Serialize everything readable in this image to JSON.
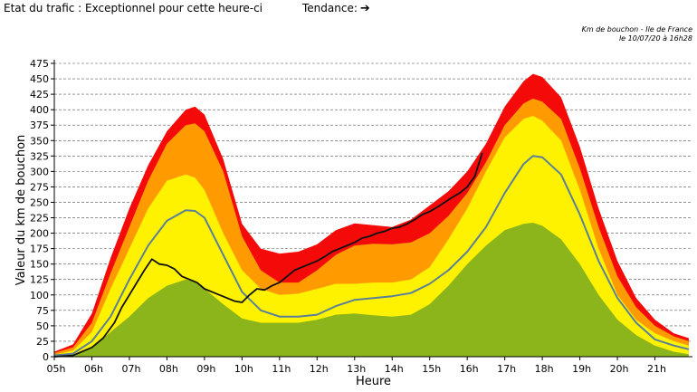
{
  "header": {
    "status_label": "Etat du trafic : Exceptionnel pour cette heure-ci",
    "trend_label": "Tendance:",
    "trend_icon": "arrow-right-icon",
    "caption_line1": "Km de bouchon - Ile de France",
    "caption_line2": "le 10/07/20 à 16h28"
  },
  "chart_data": {
    "type": "area",
    "xlabel": "Heure",
    "ylabel": "Valeur du  km de bouchon",
    "ylim": [
      0,
      475
    ],
    "xlim": [
      5,
      22
    ],
    "x_ticks": [
      5,
      6,
      7,
      8,
      9,
      10,
      11,
      12,
      13,
      14,
      15,
      16,
      17,
      18,
      19,
      20,
      21
    ],
    "x_tick_labels": [
      "05h",
      "06h",
      "07h",
      "08h",
      "09h",
      "10h",
      "11h",
      "12h",
      "13h",
      "14h",
      "15h",
      "16h",
      "17h",
      "18h",
      "19h",
      "20h",
      "21h"
    ],
    "y_ticks": [
      0,
      25,
      50,
      75,
      100,
      125,
      150,
      175,
      200,
      225,
      250,
      275,
      300,
      325,
      350,
      375,
      400,
      425,
      450,
      475
    ],
    "grid": true,
    "colors": {
      "red": "#f50a0a",
      "orange": "#ff9b00",
      "yellow": "#fff200",
      "green": "#8bb51a",
      "average": "#5b7f96",
      "actual": "#111111"
    },
    "band_x": [
      5,
      5.5,
      6,
      6.5,
      7,
      7.5,
      8,
      8.5,
      8.75,
      9,
      9.5,
      10,
      10.5,
      11,
      11.5,
      12,
      12.5,
      13,
      13.5,
      14,
      14.5,
      15,
      15.5,
      16,
      16.5,
      17,
      17.5,
      17.75,
      18,
      18.5,
      19,
      19.5,
      20,
      20.5,
      21,
      21.5,
      21.9
    ],
    "bands": [
      {
        "color": "red",
        "values": [
          8,
          20,
          70,
          160,
          240,
          310,
          365,
          400,
          405,
          392,
          320,
          215,
          175,
          167,
          170,
          182,
          205,
          216,
          213,
          210,
          222,
          245,
          268,
          300,
          345,
          405,
          446,
          458,
          453,
          420,
          340,
          240,
          155,
          95,
          60,
          38,
          30
        ]
      },
      {
        "color": "orange",
        "values": [
          6,
          15,
          55,
          135,
          210,
          285,
          345,
          375,
          378,
          365,
          300,
          195,
          140,
          120,
          120,
          140,
          165,
          180,
          183,
          182,
          185,
          200,
          228,
          265,
          315,
          375,
          410,
          418,
          413,
          385,
          305,
          210,
          130,
          80,
          50,
          33,
          25
        ]
      },
      {
        "color": "yellow",
        "values": [
          3,
          10,
          40,
          110,
          175,
          240,
          285,
          295,
          290,
          270,
          200,
          140,
          110,
          100,
          102,
          110,
          118,
          118,
          120,
          120,
          125,
          145,
          190,
          240,
          300,
          355,
          385,
          390,
          382,
          350,
          270,
          175,
          100,
          60,
          38,
          25,
          18
        ]
      },
      {
        "color": "green",
        "values": [
          1,
          3,
          15,
          40,
          65,
          95,
          115,
          125,
          122,
          110,
          85,
          62,
          55,
          55,
          55,
          60,
          68,
          70,
          67,
          65,
          68,
          85,
          115,
          150,
          180,
          205,
          215,
          217,
          212,
          190,
          150,
          100,
          60,
          35,
          18,
          8,
          4
        ]
      }
    ],
    "series": [
      {
        "key": "average",
        "x": [
          5,
          5.5,
          6,
          6.5,
          7,
          7.5,
          8,
          8.5,
          8.75,
          9,
          9.5,
          10,
          10.5,
          11,
          11.5,
          12,
          12.5,
          13,
          13.5,
          14,
          14.5,
          15,
          15.5,
          16,
          16.5,
          17,
          17.5,
          17.75,
          18,
          18.5,
          19,
          19.5,
          20,
          20.5,
          21,
          21.5,
          21.9
        ],
        "values": [
          2,
          5,
          25,
          65,
          125,
          180,
          220,
          237,
          236,
          225,
          165,
          105,
          75,
          65,
          65,
          68,
          82,
          92,
          95,
          98,
          103,
          118,
          140,
          170,
          210,
          265,
          312,
          325,
          323,
          295,
          230,
          155,
          95,
          55,
          28,
          18,
          12
        ]
      },
      {
        "key": "actual",
        "x": [
          5,
          5.5,
          6,
          6.3,
          6.6,
          6.8,
          7,
          7.2,
          7.4,
          7.6,
          7.8,
          8,
          8.2,
          8.4,
          8.6,
          8.8,
          9,
          9.2,
          9.4,
          9.6,
          9.8,
          10,
          10.2,
          10.4,
          10.6,
          10.8,
          11,
          11.2,
          11.4,
          11.6,
          11.8,
          12,
          12.2,
          12.4,
          12.6,
          12.8,
          13,
          13.2,
          13.4,
          13.6,
          13.8,
          14,
          14.2,
          14.4,
          14.6,
          14.8,
          15,
          15.2,
          15.4,
          15.6,
          15.8,
          16,
          16.2,
          16.4
        ],
        "values": [
          0,
          2,
          15,
          30,
          55,
          80,
          100,
          120,
          140,
          158,
          150,
          148,
          142,
          130,
          125,
          120,
          110,
          105,
          100,
          95,
          90,
          88,
          100,
          110,
          108,
          115,
          120,
          130,
          140,
          145,
          150,
          155,
          162,
          170,
          175,
          180,
          185,
          192,
          195,
          200,
          203,
          208,
          210,
          215,
          222,
          230,
          235,
          242,
          250,
          258,
          265,
          275,
          292,
          330
        ]
      }
    ]
  }
}
